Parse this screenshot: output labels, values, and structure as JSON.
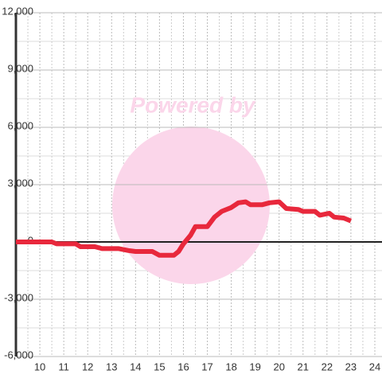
{
  "chart_data": {
    "type": "line",
    "watermark": "Powered by",
    "x": [
      9,
      10.5,
      10.7,
      11.5,
      11.7,
      12.3,
      12.6,
      13.3,
      13.7,
      14.0,
      14.7,
      15.0,
      15.6,
      15.8,
      16.0,
      16.3,
      16.5,
      17.0,
      17.3,
      17.6,
      18.0,
      18.3,
      18.6,
      18.8,
      19.3,
      19.6,
      20.0,
      20.3,
      20.8,
      21.0,
      21.5,
      21.7,
      21.9,
      22.1,
      22.3,
      22.7,
      23.0
    ],
    "series": [
      {
        "color": "#e8283c",
        "values": [
          0,
          0,
          -100,
          -100,
          -250,
          -250,
          -350,
          -350,
          -450,
          -500,
          -500,
          -700,
          -700,
          -500,
          -100,
          350,
          800,
          800,
          1300,
          1600,
          1800,
          2050,
          2100,
          1950,
          1950,
          2050,
          2100,
          1750,
          1700,
          1600,
          1600,
          1400,
          1450,
          1500,
          1300,
          1250,
          1100
        ]
      }
    ],
    "xlim": [
      9,
      24.3
    ],
    "xticks": [
      10,
      11,
      12,
      13,
      14,
      15,
      16,
      17,
      18,
      19,
      20,
      21,
      22,
      23,
      24
    ],
    "ylim": [
      -6000,
      12000
    ],
    "yticks": [
      {
        "value": -6000,
        "label": "-6,000"
      },
      {
        "value": -3000,
        "label": "-3,000"
      },
      0,
      {
        "value": 3000,
        "label": "3,000"
      },
      {
        "value": 6000,
        "label": "6,000"
      },
      {
        "value": 9000,
        "label": "9,000"
      },
      {
        "value": 12000,
        "label": "12,000"
      }
    ],
    "grid": true
  }
}
